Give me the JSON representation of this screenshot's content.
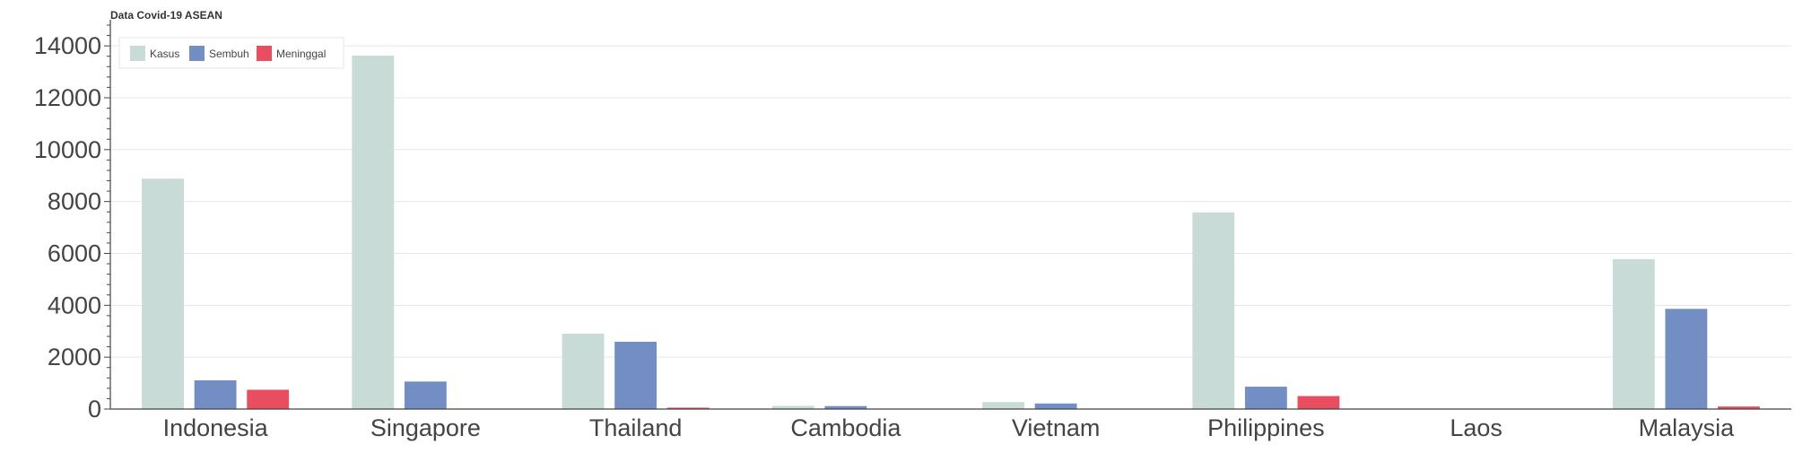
{
  "chart_data": {
    "type": "bar",
    "title": "Data Covid-19 ASEAN",
    "xlabel": "",
    "ylabel": "",
    "categories": [
      "Indonesia",
      "Singapore",
      "Thailand",
      "Cambodia",
      "Vietnam",
      "Philippines",
      "Laos",
      "Malaysia"
    ],
    "series": [
      {
        "name": "Kasus",
        "color": "#c9dbd6",
        "values": [
          8882,
          13624,
          2907,
          122,
          268,
          7579,
          19,
          5780
        ]
      },
      {
        "name": "Sembuh",
        "color": "#728ec2",
        "values": [
          1107,
          1060,
          2594,
          114,
          214,
          862,
          2,
          3862
        ]
      },
      {
        "name": "Meninggal",
        "color": "#e84d60",
        "values": [
          743,
          12,
          54,
          0,
          0,
          501,
          0,
          98
        ]
      }
    ],
    "ylim": [
      0,
      14800
    ],
    "yticks": [
      0,
      2000,
      4000,
      6000,
      8000,
      10000,
      12000,
      14000
    ],
    "grid": true,
    "legend_position": "top-left"
  }
}
